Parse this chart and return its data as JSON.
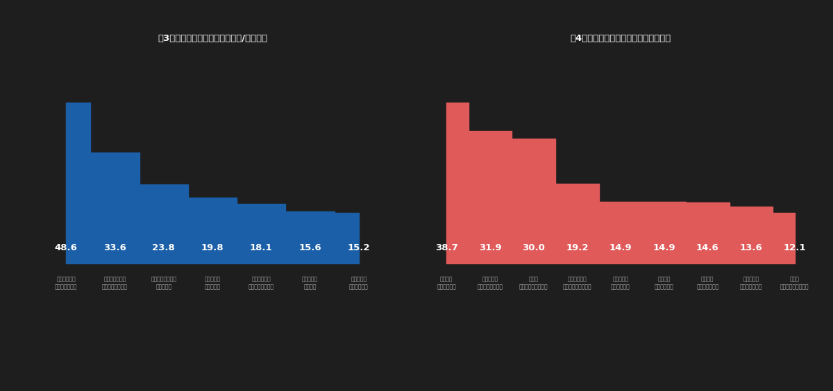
{
  "background_color": "#1e1e1e",
  "chart1": {
    "title": "図3　マイナンバーカードの所有/申請理由",
    "values": [
      48.6,
      33.6,
      23.8,
      19.8,
      18.1,
      15.6,
      15.2
    ],
    "labels": [
      "行政手続きに\n便利そうだから",
      "将来的に必要に\nなると思ったから",
      "必要なサービスが\nあったから",
      "身分証明に\n使えるから",
      "健康保険証の\n代わりになるから",
      "コンビニで\n成つから",
      "ポイントが\nもらえるから"
    ],
    "color": "#1a5fa8",
    "text_color": "#ffffff"
  },
  "chart2": {
    "title": "図4　マイナンバーカードの非所有理由",
    "values": [
      38.7,
      31.9,
      30.0,
      19.2,
      14.9,
      14.9,
      14.6,
      13.6,
      12.1
    ],
    "labels": [
      "必要性を\n感じないから",
      "個人情報の\n漏洩が心配だから",
      "作成が\n面倒くさそうだから",
      "申請手続きが\n面倒くさそうだから",
      "不正受給に\n使われるかも",
      "紛失時の\n手続きが大変",
      "作り方が\nわからないから",
      "身分証明を\n持っているから",
      "管理が\n面倒くさそうだから"
    ],
    "color": "#e05a5a",
    "text_color": "#ffffff"
  }
}
